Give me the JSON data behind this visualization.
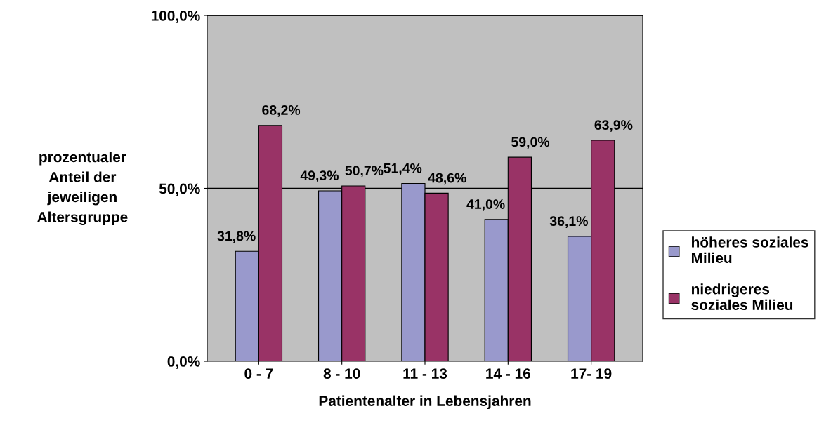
{
  "chart_data": {
    "type": "bar",
    "xlabel": "Patientenalter in Lebensjahren",
    "ylabel": "prozentualer\nAnteil der\njeweiligen\nAltersgruppe",
    "categories": [
      "0 - 7",
      "8 - 10",
      "11 - 13",
      "14 - 16",
      "17- 19"
    ],
    "series": [
      {
        "name": "höheres soziales\nMilieu",
        "color": "#9999cc",
        "values": [
          31.8,
          49.3,
          51.4,
          41.0,
          36.1
        ],
        "value_labels": [
          "31,8%",
          "49,3%",
          "51,4%",
          "41,0%",
          "36,1%"
        ]
      },
      {
        "name": "niedrigeres\nsoziales Milieu",
        "color": "#993366",
        "values": [
          68.2,
          50.7,
          48.6,
          59.0,
          63.9
        ],
        "value_labels": [
          "68,2%",
          "50,7%",
          "48,6%",
          "59,0%",
          "63,9%"
        ]
      }
    ],
    "ylim": [
      0,
      100
    ],
    "yticks": [
      {
        "value": 0,
        "label": "0,0%"
      },
      {
        "value": 50,
        "label": "50,0%"
      },
      {
        "value": 100,
        "label": "100,0%"
      }
    ],
    "grid": "y",
    "legend": "right"
  }
}
